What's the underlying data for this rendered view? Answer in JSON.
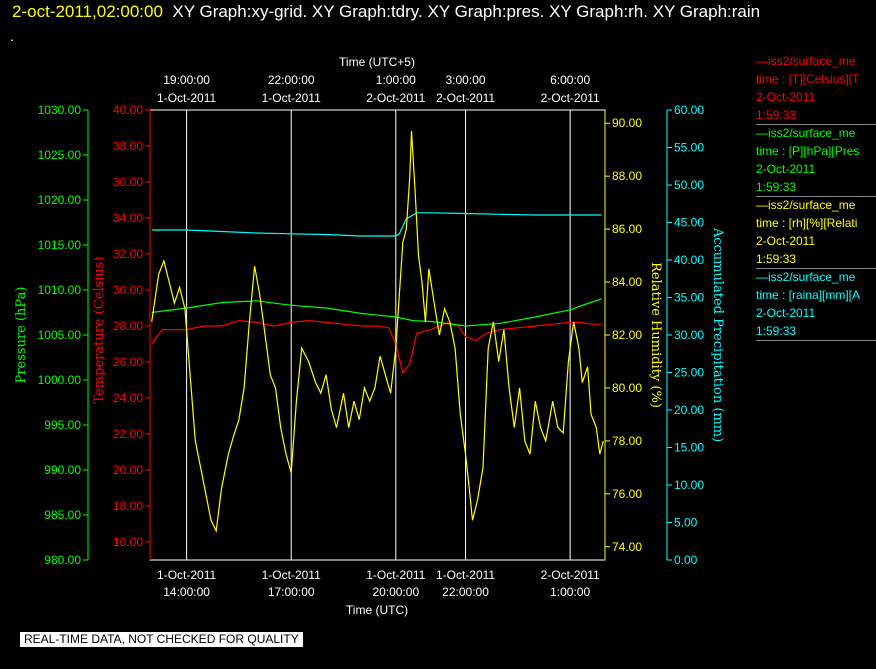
{
  "header": {
    "date": "2-oct-2011,02:00:00",
    "titles": "XY Graph:xy-grid.  XY Graph:tdry.  XY Graph:pres.  XY Graph:rh.  XY Graph:rain",
    "dot": "."
  },
  "legends": [
    {
      "line1": "—iss2/surface_me",
      "line2": "time : [T][Celsius][T",
      "line3": "2-Oct-2011",
      "line4": "1:59:33",
      "color": "#ff0000"
    },
    {
      "line1": "—iss2/surface_me",
      "line2": "time : [P][hPa][Pres",
      "line3": "2-Oct-2011",
      "line4": "1:59:33",
      "color": "#00ff00"
    },
    {
      "line1": "—iss2/surface_me",
      "line2": "time : [rh][%][Relati",
      "line3": "2-Oct-2011",
      "line4": "1:59:33",
      "color": "#ffff00"
    },
    {
      "line1": "—iss2/surface_me",
      "line2": "time : [raina][mm][A",
      "line3": "2-Oct-2011",
      "line4": "1:59:33",
      "color": "#00ffff"
    }
  ],
  "footer": "REAL-TIME DATA, NOT CHECKED FOR QUALITY",
  "chart_data": {
    "type": "line",
    "colors": {
      "pressure": "#00ff00",
      "temperature": "#ff0000",
      "humidity": "#ffff00",
      "precip": "#00ffff",
      "grid": "#ffffff"
    },
    "top_axis": {
      "title": "Time (UTC+5)",
      "ticks": [
        {
          "l1": "19:00:00",
          "l2": "1-Oct-2011"
        },
        {
          "l1": "22:00:00",
          "l2": "1-Oct-2011"
        },
        {
          "l1": "1:00:00",
          "l2": "2-Oct-2011"
        },
        {
          "l1": "3:00:00",
          "l2": "2-Oct-2011"
        },
        {
          "l1": "6:00:00",
          "l2": "2-Oct-2011"
        }
      ]
    },
    "bottom_axis": {
      "title": "Time (UTC)",
      "ticks": [
        {
          "l1": "1-Oct-2011",
          "l2": "14:00:00"
        },
        {
          "l1": "1-Oct-2011",
          "l2": "17:00:00"
        },
        {
          "l1": "1-Oct-2011",
          "l2": "20:00:00"
        },
        {
          "l1": "1-Oct-2011",
          "l2": "22:00:00"
        },
        {
          "l1": "2-Oct-2011",
          "l2": "1:00:00"
        }
      ]
    },
    "x_tick_hours": [
      14,
      17,
      20,
      22,
      25
    ],
    "xlim_hours": [
      12.95,
      26.0
    ],
    "pressure_axis": {
      "label": "Pressure (hPa)",
      "ylim": [
        980,
        1030
      ],
      "ticks": [
        "980.00",
        "985.00",
        "990.00",
        "995.00",
        "1000.00",
        "1005.00",
        "1010.00",
        "1015.00",
        "1020.00",
        "1025.00",
        "1030.00"
      ]
    },
    "temperature_axis": {
      "label": "Temperature (Celsius)",
      "ylim": [
        15,
        40
      ],
      "ticks": [
        "16.00",
        "18.00",
        "20.00",
        "22.00",
        "24.00",
        "26.00",
        "28.00",
        "30.00",
        "32.00",
        "34.00",
        "36.00",
        "38.00",
        "40.00"
      ]
    },
    "humidity_axis": {
      "label": "Relative Humidity (%)",
      "ylim": [
        73.5,
        90.5
      ],
      "ticks": [
        "74.00",
        "76.00",
        "78.00",
        "80.00",
        "82.00",
        "84.00",
        "86.00",
        "88.00",
        "90.00"
      ]
    },
    "precip_axis": {
      "label": "Accumulated Precipitation (mm)",
      "ylim": [
        0,
        60
      ],
      "ticks": [
        "0.00",
        "5.00",
        "10.00",
        "15.00",
        "20.00",
        "25.00",
        "30.00",
        "35.00",
        "40.00",
        "45.00",
        "50.00",
        "55.00",
        "60.00"
      ]
    },
    "series": [
      {
        "name": "temperature",
        "axis": "temperature",
        "x": [
          13.0,
          13.3,
          13.6,
          14.0,
          14.5,
          15.0,
          15.5,
          16.0,
          16.5,
          17.0,
          17.5,
          18.0,
          18.5,
          19.0,
          19.5,
          19.8,
          20.0,
          20.2,
          20.4,
          20.6,
          21.0,
          21.5,
          21.8,
          22.0,
          22.3,
          22.6,
          23.0,
          23.5,
          24.0,
          24.5,
          25.0,
          25.3,
          25.6,
          25.9
        ],
        "y": [
          27.0,
          27.8,
          27.8,
          27.8,
          28.0,
          28.0,
          28.3,
          28.2,
          28.0,
          28.2,
          28.3,
          28.2,
          28.1,
          28.0,
          28.0,
          27.9,
          27.0,
          25.4,
          25.9,
          27.6,
          27.8,
          28.2,
          28.0,
          27.4,
          27.2,
          27.6,
          27.8,
          27.9,
          28.0,
          28.1,
          28.2,
          28.2,
          28.1,
          28.1
        ]
      },
      {
        "name": "pressure",
        "axis": "pressure",
        "x": [
          13.0,
          14.0,
          15.0,
          16.0,
          17.0,
          18.0,
          19.0,
          20.0,
          20.5,
          21.0,
          22.0,
          23.0,
          24.0,
          25.0,
          25.5,
          25.9
        ],
        "y": [
          1007.5,
          1008.0,
          1008.6,
          1008.8,
          1008.3,
          1008.0,
          1007.4,
          1007.0,
          1006.6,
          1006.5,
          1006.0,
          1006.3,
          1007.0,
          1007.8,
          1008.5,
          1009.0
        ]
      },
      {
        "name": "precip",
        "axis": "precip",
        "x": [
          13.0,
          14.0,
          15.0,
          16.0,
          17.0,
          18.0,
          19.0,
          20.0,
          20.1,
          20.3,
          20.6,
          21.0,
          22.0,
          23.0,
          24.0,
          25.0,
          25.9
        ],
        "y": [
          44.0,
          44.0,
          43.8,
          43.6,
          43.5,
          43.4,
          43.2,
          43.2,
          43.5,
          45.5,
          46.3,
          46.3,
          46.2,
          46.1,
          46.0,
          46.0,
          46.0
        ]
      },
      {
        "name": "humidity",
        "axis": "humidity",
        "x": [
          13.0,
          13.1,
          13.2,
          13.35,
          13.5,
          13.65,
          13.8,
          13.95,
          14.1,
          14.25,
          14.4,
          14.55,
          14.7,
          14.85,
          15.0,
          15.2,
          15.35,
          15.5,
          15.65,
          15.8,
          15.95,
          16.1,
          16.25,
          16.4,
          16.55,
          16.7,
          16.85,
          17.0,
          17.15,
          17.3,
          17.5,
          17.7,
          17.85,
          18.0,
          18.15,
          18.3,
          18.5,
          18.65,
          18.8,
          18.95,
          19.1,
          19.25,
          19.4,
          19.55,
          19.7,
          19.85,
          20.0,
          20.1,
          20.2,
          20.3,
          20.4,
          20.45,
          20.55,
          20.65,
          20.75,
          20.85,
          20.95,
          21.1,
          21.25,
          21.4,
          21.55,
          21.7,
          21.85,
          22.0,
          22.1,
          22.2,
          22.35,
          22.5,
          22.65,
          22.8,
          22.95,
          23.1,
          23.25,
          23.4,
          23.55,
          23.7,
          23.85,
          24.0,
          24.15,
          24.3,
          24.5,
          24.65,
          24.8,
          24.95,
          25.1,
          25.25,
          25.35,
          25.5,
          25.6,
          25.75,
          25.85,
          25.95
        ],
        "y": [
          82.5,
          83.4,
          84.3,
          84.8,
          84.0,
          83.2,
          83.8,
          83.0,
          80.5,
          78.0,
          77.0,
          76.0,
          75.0,
          74.6,
          76.2,
          77.5,
          78.2,
          78.8,
          80.0,
          82.5,
          84.6,
          83.5,
          82.0,
          80.5,
          80.0,
          78.5,
          77.5,
          76.8,
          79.5,
          81.5,
          81.0,
          80.2,
          79.8,
          80.5,
          79.2,
          78.5,
          79.8,
          78.5,
          79.5,
          78.8,
          80.0,
          79.5,
          80.0,
          81.2,
          80.5,
          79.8,
          81.5,
          83.5,
          85.5,
          86.0,
          88.0,
          89.7,
          87.5,
          85.0,
          84.0,
          82.5,
          84.5,
          83.2,
          82.0,
          83.0,
          82.5,
          81.5,
          79.0,
          77.5,
          76.3,
          75.0,
          75.8,
          77.0,
          81.5,
          82.5,
          81.0,
          82.2,
          80.0,
          78.5,
          80.0,
          78.0,
          77.5,
          79.5,
          78.5,
          78.0,
          79.5,
          78.5,
          78.3,
          81.0,
          82.5,
          81.5,
          80.2,
          80.8,
          79.0,
          78.5,
          77.5,
          78.0
        ]
      }
    ]
  }
}
